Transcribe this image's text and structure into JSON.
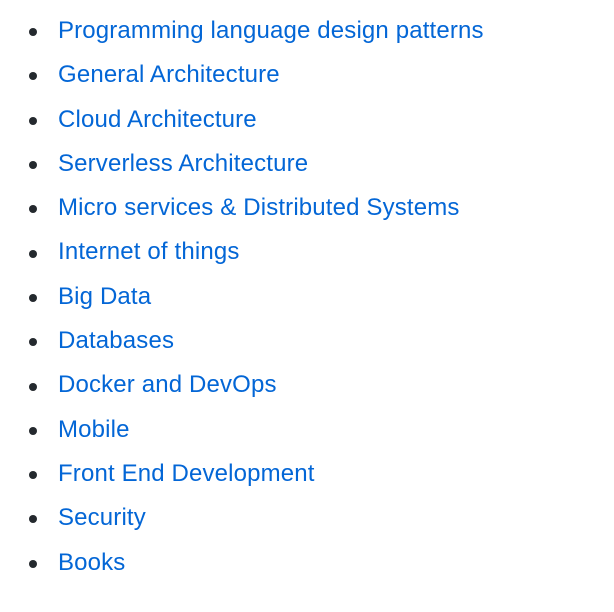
{
  "accent_color": "#0366d6",
  "bullet_color": "#24292e",
  "links": [
    {
      "label": "Programming language design patterns"
    },
    {
      "label": "General Architecture"
    },
    {
      "label": "Cloud Architecture"
    },
    {
      "label": "Serverless Architecture"
    },
    {
      "label": "Micro services & Distributed Systems"
    },
    {
      "label": "Internet of things"
    },
    {
      "label": "Big Data"
    },
    {
      "label": "Databases"
    },
    {
      "label": "Docker and DevOps"
    },
    {
      "label": "Mobile"
    },
    {
      "label": "Front End Development"
    },
    {
      "label": "Security"
    },
    {
      "label": "Books"
    }
  ]
}
